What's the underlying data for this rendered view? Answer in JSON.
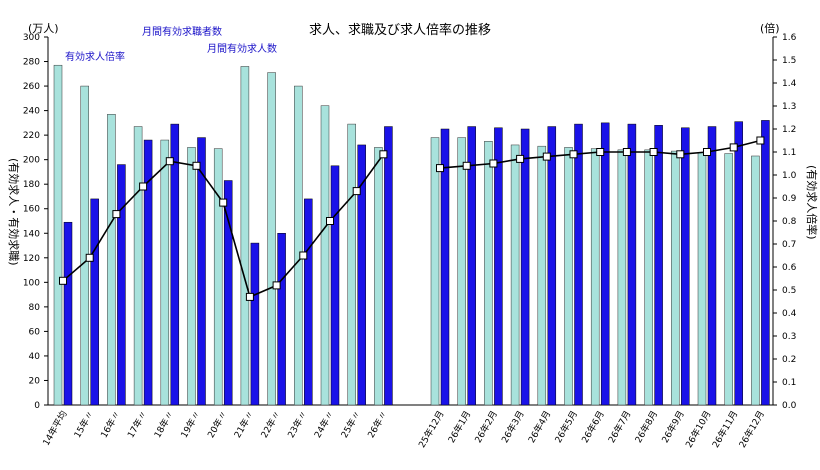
{
  "chart_data": {
    "type": "bar",
    "title": "求人、求職及び求人倍率の推移",
    "y_left_unit": "(万人)",
    "y_right_unit": "(倍)",
    "ylabel_left": "(有効求人・有効求職)",
    "ylabel_right": "(有効求人倍率)",
    "ylim_left": [
      0,
      300
    ],
    "ylim_right": [
      0,
      1.6
    ],
    "y_left_ticks": [
      "0",
      "20",
      "40",
      "60",
      "80",
      "100",
      "120",
      "140",
      "160",
      "180",
      "200",
      "220",
      "240",
      "260",
      "280",
      "300"
    ],
    "y_right_ticks": [
      "0.0",
      "0.1",
      "0.2",
      "0.3",
      "0.4",
      "0.5",
      "0.6",
      "0.7",
      "0.8",
      "0.9",
      "1.0",
      "1.1",
      "1.2",
      "1.3",
      "1.4",
      "1.5",
      "1.6"
    ],
    "grid": false,
    "categories": [
      "14年平均",
      "15年〃",
      "16年〃",
      "17年〃",
      "18年〃",
      "19年〃",
      "20年〃",
      "21年〃",
      "22年〃",
      "23年〃",
      "24年〃",
      "25年〃",
      "26年〃",
      "25年12月",
      "26年1月",
      "26年2月",
      "26年3月",
      "26年4月",
      "26年5月",
      "26年6月",
      "26年7月",
      "26年8月",
      "26年9月",
      "26年10月",
      "26年11月",
      "26年12月"
    ],
    "series": [
      {
        "name": "月間有効求職者数",
        "color": "#a8e2dc",
        "values": [
          277,
          260,
          237,
          227,
          216,
          210,
          209,
          276,
          271,
          260,
          244,
          229,
          210,
          218,
          218,
          215,
          212,
          211,
          210,
          209,
          208,
          208,
          207,
          206,
          205,
          203
        ]
      },
      {
        "name": "月間有効求人数",
        "color": "#1a12e8",
        "values": [
          149,
          168,
          196,
          216,
          229,
          218,
          183,
          132,
          140,
          168,
          195,
          212,
          227,
          225,
          227,
          226,
          225,
          227,
          229,
          230,
          229,
          228,
          226,
          227,
          231,
          232
        ]
      },
      {
        "name": "有効求人倍率",
        "color": "#000000",
        "values": [
          0.54,
          0.64,
          0.83,
          0.95,
          1.06,
          1.04,
          0.88,
          0.47,
          0.52,
          0.65,
          0.8,
          0.93,
          1.09,
          1.03,
          1.04,
          1.05,
          1.07,
          1.08,
          1.09,
          1.1,
          1.1,
          1.1,
          1.09,
          1.1,
          1.12,
          1.15
        ]
      }
    ],
    "annotations": [
      "月間有効求職者数",
      "月間有効求人数",
      "有効求人倍率"
    ]
  }
}
